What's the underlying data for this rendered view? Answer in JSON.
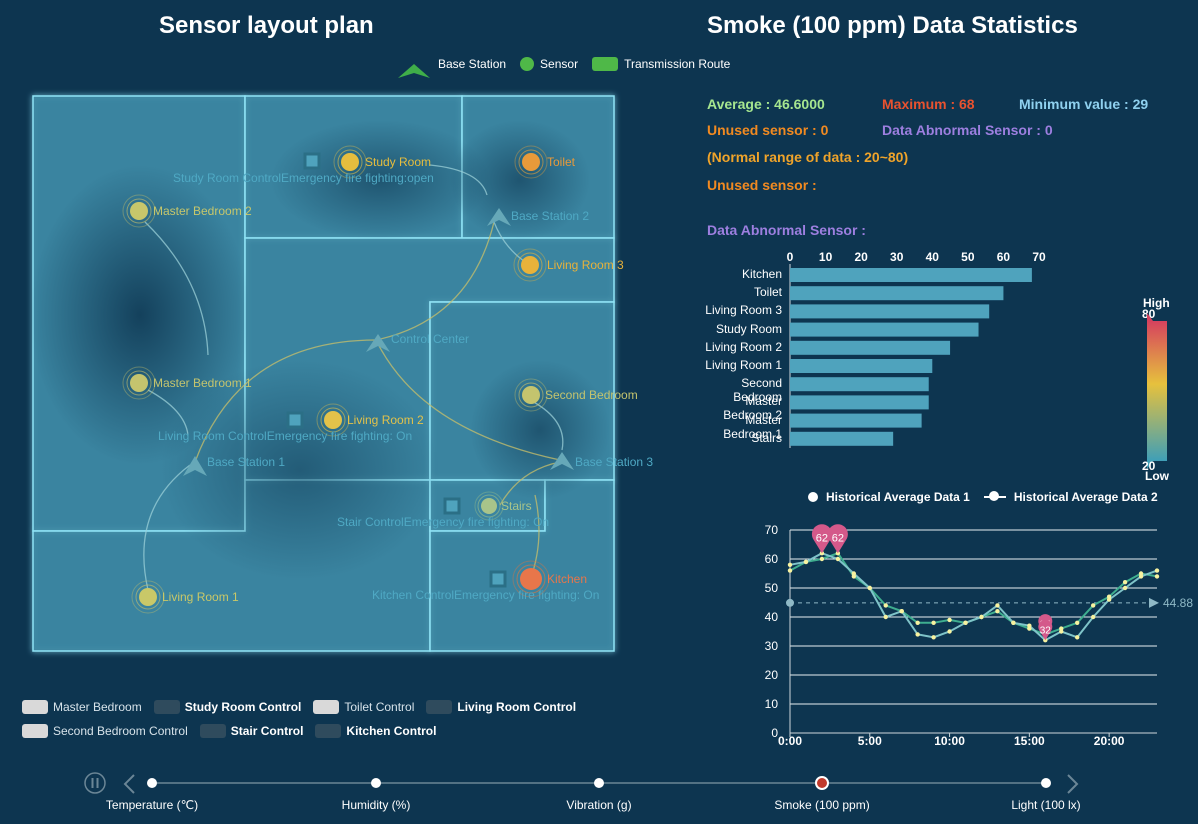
{
  "titles": {
    "left": "Sensor layout plan",
    "right": "Smoke (100 ppm) Data Statistics"
  },
  "map_legend": {
    "base_station": "Base Station",
    "sensor": "Sensor",
    "route": "Transmission Route",
    "colors": {
      "base_station": "#3fae49",
      "sensor": "#4fb848",
      "route": "#4fb848"
    }
  },
  "rooms": {
    "study_room": "Study Room",
    "toilet": "Toilet",
    "master_bedroom_2": "Master Bedroom 2",
    "living_room_3": "Living Room 3",
    "master_bedroom_1": "Master Bedroom 1",
    "living_room_2": "Living Room 2",
    "second_bedroom": "Second Bedroom",
    "stairs": "Stairs",
    "kitchen": "Kitchen",
    "living_room_1": "Living Room 1"
  },
  "stations": {
    "bs1": "Base Station 1",
    "bs2": "Base Station 2",
    "bs3": "Base Station 3",
    "control_center": "Control Center"
  },
  "controls": {
    "study": "Study Room ControlEmergency fire fighting:open",
    "living": "Living Room ControlEmergency fire fighting: On",
    "stair": "Stair ControlEmergency fire fighting: On",
    "kitchen": "Kitchen ControlEmergency fire fighting:  On"
  },
  "stats": {
    "average": "Average : 46.6000",
    "maximum": "Maximum : 68",
    "minimum": "Minimum value : 29",
    "unused_count": "Unused sensor : 0",
    "abnormal_count": "Data Abnormal Sensor : 0",
    "normal_range": "(Normal range of data : 20~80)",
    "unused_label": "Unused sensor :",
    "abnormal_label": "Data Abnormal Sensor :"
  },
  "visual_map": {
    "high_label": "High",
    "low_label": "Low",
    "max": "80",
    "min": "20"
  },
  "line_legend": {
    "s1": "Historical Average Data 1",
    "s2": "Historical Average Data 2"
  },
  "bottom_legend": [
    {
      "label": "Master Bedroom",
      "color": "#d9d9d9",
      "bold": false
    },
    {
      "label": "Study Room Control",
      "color": "#2f4b5d",
      "bold": true
    },
    {
      "label": "Toilet Control",
      "color": "#d9d9d9",
      "bold": false
    },
    {
      "label": "Living Room Control",
      "color": "#2f4b5d",
      "bold": true
    },
    {
      "label": "Second Bedroom Control",
      "color": "#d9d9d9",
      "bold": false
    },
    {
      "label": "Stair Control",
      "color": "#2f4b5d",
      "bold": true
    },
    {
      "label": "Kitchen Control",
      "color": "#2f4b5d",
      "bold": true
    }
  ],
  "timeline": {
    "items": [
      "Temperature (℃)",
      "Humidity (%)",
      "Vibration (g)",
      "Smoke (100 ppm)",
      "Light (100 lx)"
    ],
    "active_index": 3
  },
  "chart_data": [
    {
      "type": "bar",
      "orientation": "horizontal",
      "categories": [
        "Kitchen",
        "Toilet",
        "Living Room 3",
        "Study Room",
        "Living Room 2",
        "Living Room 1",
        "Second Bedroom",
        "Master Bedroom 2",
        "Master Bedroom 1",
        "Stairs"
      ],
      "values": [
        68,
        60,
        56,
        53,
        45,
        40,
        39,
        39,
        37,
        29
      ],
      "xticks": [
        "0",
        "10",
        "20",
        "30",
        "40",
        "50",
        "60",
        "70"
      ],
      "xlim": [
        0,
        70
      ],
      "color": "#4fa3bd"
    },
    {
      "type": "line",
      "x": [
        "0:00",
        "1:00",
        "2:00",
        "3:00",
        "4:00",
        "5:00",
        "6:00",
        "7:00",
        "8:00",
        "9:00",
        "10:00",
        "11:00",
        "12:00",
        "13:00",
        "14:00",
        "15:00",
        "16:00",
        "17:00",
        "18:00",
        "19:00",
        "20:00",
        "21:00",
        "22:00",
        "23:00"
      ],
      "xticks": [
        "0:00",
        "5:00",
        "10:00",
        "15:00",
        "20:00"
      ],
      "yticks": [
        "0",
        "10",
        "20",
        "30",
        "40",
        "50",
        "60",
        "70"
      ],
      "ylim": [
        0,
        70
      ],
      "series": [
        {
          "name": "Historical Average Data 1",
          "values": [
            56,
            59,
            60,
            62,
            54,
            50,
            44,
            42,
            38,
            38,
            39,
            38,
            40,
            42,
            38,
            36,
            34,
            36,
            38,
            44,
            47,
            52,
            55,
            54
          ],
          "color": "#3fae8f"
        },
        {
          "name": "Historical Average Data 2",
          "values": [
            58,
            59,
            62,
            60,
            55,
            50,
            40,
            42,
            34,
            33,
            35,
            38,
            40,
            44,
            38,
            37,
            32,
            35,
            33,
            40,
            46,
            50,
            54,
            56
          ],
          "color": "#7fc4c9"
        }
      ],
      "max_markers": [
        "62",
        "62"
      ],
      "min_markers": [
        "34",
        "32"
      ],
      "mean_line": "44.88"
    }
  ]
}
